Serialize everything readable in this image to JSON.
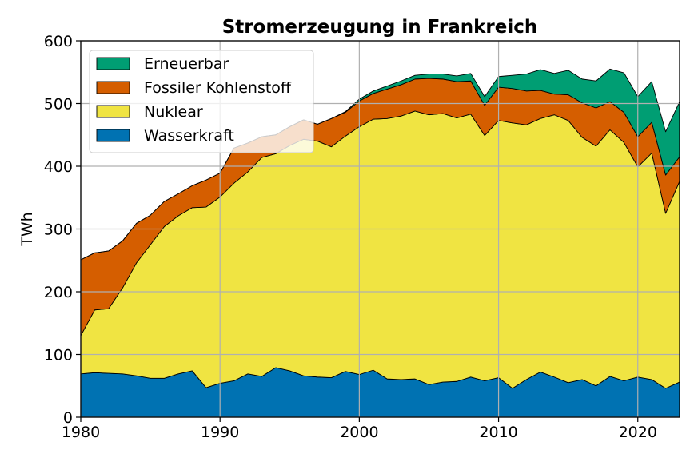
{
  "chart_data": {
    "type": "area",
    "stacked": true,
    "title": "Stromerzeugung in Frankreich",
    "xlabel": "",
    "ylabel": "TWh",
    "xlim": [
      1980,
      2023
    ],
    "ylim": [
      0,
      600
    ],
    "xticks": [
      1980,
      1990,
      2000,
      2010,
      2020
    ],
    "yticks": [
      0,
      100,
      200,
      300,
      400,
      500,
      600
    ],
    "grid": true,
    "legend_position": "top-left",
    "x": [
      1980,
      1981,
      1982,
      1983,
      1984,
      1985,
      1986,
      1987,
      1988,
      1989,
      1990,
      1991,
      1992,
      1993,
      1994,
      1995,
      1996,
      1997,
      1998,
      1999,
      2000,
      2001,
      2002,
      2003,
      2004,
      2005,
      2006,
      2007,
      2008,
      2009,
      2010,
      2011,
      2012,
      2013,
      2014,
      2015,
      2016,
      2017,
      2018,
      2019,
      2020,
      2021,
      2022,
      2023
    ],
    "series": [
      {
        "name": "Wasserkraft",
        "color": "#0072b2",
        "values": [
          69,
          71,
          70,
          69,
          66,
          62,
          62,
          69,
          74,
          47,
          54,
          58,
          69,
          65,
          79,
          74,
          66,
          64,
          63,
          73,
          68,
          75,
          61,
          60,
          61,
          52,
          56,
          57,
          64,
          58,
          63,
          46,
          60,
          72,
          64,
          55,
          60,
          50,
          65,
          58,
          64,
          60,
          46,
          56
        ]
      },
      {
        "name": "Nuklear",
        "color": "#f0e442",
        "values": [
          61,
          100,
          103,
          137,
          180,
          213,
          242,
          252,
          260,
          288,
          297,
          315,
          322,
          349,
          341,
          359,
          377,
          376,
          368,
          375,
          395,
          400,
          415,
          420,
          427,
          430,
          428,
          420,
          419,
          391,
          410,
          423,
          406,
          404,
          418,
          418,
          386,
          382,
          393,
          380,
          335,
          361,
          279,
          320
        ]
      },
      {
        "name": "Fossiler Kohlenstoff",
        "color": "#d55e00",
        "values": [
          121,
          91,
          92,
          75,
          63,
          47,
          40,
          35,
          35,
          43,
          38,
          56,
          46,
          33,
          30,
          30,
          31,
          27,
          45,
          38,
          41,
          41,
          47,
          50,
          51,
          58,
          55,
          58,
          53,
          48,
          53,
          55,
          54,
          45,
          33,
          41,
          55,
          61,
          45,
          48,
          48,
          49,
          61,
          39
        ]
      },
      {
        "name": "Erneuerbar",
        "color": "#009e73",
        "values": [
          0,
          0,
          0,
          0,
          0,
          0,
          0,
          0,
          0,
          0,
          0,
          0,
          0,
          0,
          0,
          0,
          0,
          0,
          0,
          1,
          3,
          4,
          5,
          6,
          6,
          7,
          8,
          9,
          12,
          14,
          17,
          21,
          27,
          33,
          33,
          39,
          38,
          43,
          52,
          63,
          64,
          65,
          69,
          88
        ]
      }
    ],
    "legend_order": [
      "Erneuerbar",
      "Fossiler Kohlenstoff",
      "Nuklear",
      "Wasserkraft"
    ]
  }
}
